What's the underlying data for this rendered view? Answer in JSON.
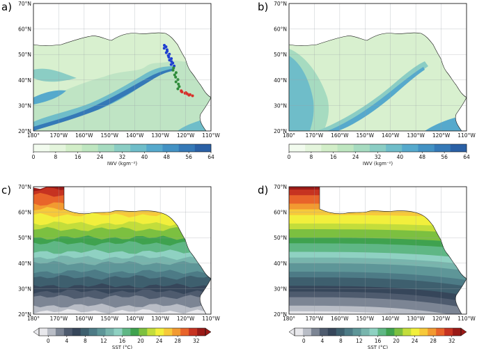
{
  "chart_data": [
    {
      "type": "heatmap",
      "panel": "a)",
      "variable": "IWV",
      "xlabel_ticks": [
        "180°",
        "170°W",
        "160°W",
        "150°W",
        "140°W",
        "130°W",
        "120°W",
        "110°W"
      ],
      "ylabel_ticks": [
        "20°N",
        "30°N",
        "40°N",
        "50°N",
        "60°N",
        "70°N"
      ],
      "lon_range": [
        -180,
        -110
      ],
      "lat_range": [
        20,
        70
      ],
      "colorbar": {
        "label": "IWV (kgm⁻²)",
        "ticks": [
          "0",
          "8",
          "16",
          "24",
          "32",
          "40",
          "48",
          "56",
          "64"
        ],
        "range": [
          0,
          64
        ]
      },
      "track_legend": [
        "blue",
        "green",
        "red"
      ]
    },
    {
      "type": "heatmap",
      "panel": "b)",
      "variable": "IWV",
      "xlabel_ticks": [
        "180°",
        "170°W",
        "160°W",
        "150°W",
        "140°W",
        "130°W",
        "120°W",
        "110°W"
      ],
      "ylabel_ticks": [
        "20°N",
        "30°N",
        "40°N",
        "50°N",
        "60°N",
        "70°N"
      ],
      "lon_range": [
        -180,
        -110
      ],
      "lat_range": [
        20,
        70
      ],
      "colorbar": {
        "label": "IWV (kgm⁻²)",
        "ticks": [
          "0",
          "8",
          "16",
          "24",
          "32",
          "40",
          "48",
          "56",
          "64"
        ],
        "range": [
          0,
          64
        ]
      }
    },
    {
      "type": "heatmap",
      "panel": "c)",
      "variable": "SST",
      "xlabel_ticks": [
        "180°",
        "170°W",
        "160°W",
        "150°W",
        "140°W",
        "130°W",
        "120°W",
        "110°W"
      ],
      "ylabel_ticks": [
        "20°N",
        "30°N",
        "40°N",
        "50°N",
        "60°N",
        "70°N"
      ],
      "lon_range": [
        -180,
        -110
      ],
      "lat_range": [
        20,
        70
      ],
      "colorbar": {
        "label": "SST (°C)",
        "ticks": [
          "0",
          "4",
          "8",
          "12",
          "16",
          "20",
          "24",
          "28",
          "32"
        ],
        "range": [
          -2,
          34
        ]
      }
    },
    {
      "type": "heatmap",
      "panel": "d)",
      "variable": "SST",
      "xlabel_ticks": [
        "180°",
        "170°W",
        "160°W",
        "150°W",
        "140°W",
        "130°W",
        "120°W",
        "110°W"
      ],
      "ylabel_ticks": [
        "20°N",
        "30°N",
        "40°N",
        "50°N",
        "60°N",
        "70°N"
      ],
      "lon_range": [
        -180,
        -110
      ],
      "lat_range": [
        20,
        70
      ],
      "colorbar": {
        "label": "SST (°C)",
        "ticks": [
          "0",
          "4",
          "8",
          "12",
          "16",
          "20",
          "24",
          "28",
          "32"
        ],
        "range": [
          -2,
          34
        ]
      }
    }
  ],
  "colors": {
    "iwv_ramp": [
      "#f2fbee",
      "#e4f5dc",
      "#d2eec8",
      "#bee6c0",
      "#a6dbc0",
      "#8bcdc4",
      "#6fbdc9",
      "#56a9cc",
      "#4392c4",
      "#3579b7",
      "#2a60a5"
    ],
    "sst_ramp": [
      "#e8e8ec",
      "#b9bdc6",
      "#7c8594",
      "#4e5b6e",
      "#36465a",
      "#3e5f6e",
      "#4d7b86",
      "#5e9698",
      "#78b5ad",
      "#8fd1c2",
      "#5fb785",
      "#3fa24f",
      "#7cc040",
      "#c3dd3b",
      "#f2ef3c",
      "#f7c93a",
      "#f29a31",
      "#e8642a",
      "#c63321",
      "#9a1a17"
    ],
    "land": "#ffffff",
    "coast": "#111111"
  }
}
